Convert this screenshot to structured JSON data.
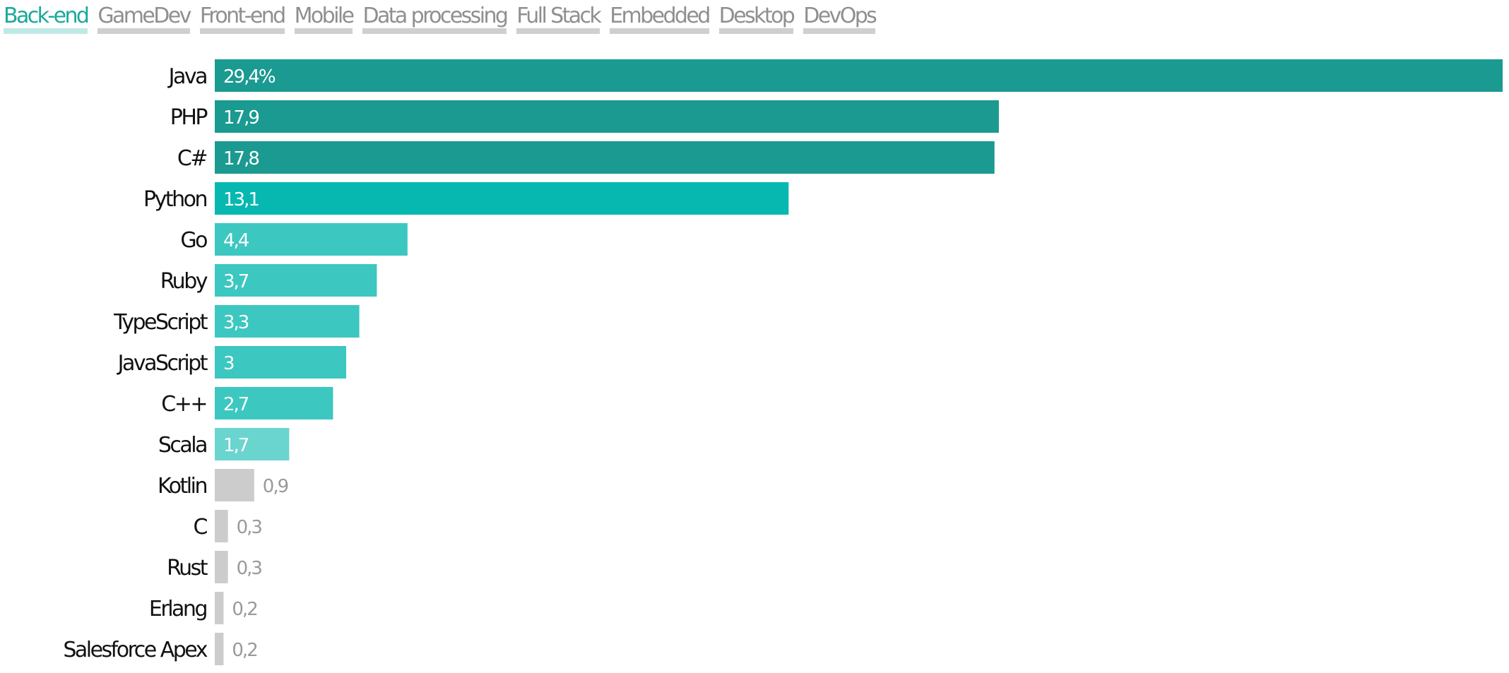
{
  "tabs": [
    {
      "label": "Back-end",
      "active": true
    },
    {
      "label": "GameDev",
      "active": false
    },
    {
      "label": "Front-end",
      "active": false
    },
    {
      "label": "Mobile",
      "active": false
    },
    {
      "label": "Data processing",
      "active": false
    },
    {
      "label": "Full Stack",
      "active": false
    },
    {
      "label": "Embedded",
      "active": false
    },
    {
      "label": "Desktop",
      "active": false
    },
    {
      "label": "DevOps",
      "active": false
    }
  ],
  "colors": {
    "dark_teal": "#1a9a90",
    "teal": "#07b8b0",
    "light_teal": "#3cc7c0",
    "pale_teal": "#6ad4cf",
    "grey": "#cccccc",
    "active_tab": "#1aa99a",
    "inactive_tab": "#8f8f8f"
  },
  "chart_data": {
    "type": "bar",
    "orientation": "horizontal",
    "unit_suffix_on_first": "%",
    "categories": [
      "Java",
      "PHP",
      "C#",
      "Python",
      "Go",
      "Ruby",
      "TypeScript",
      "JavaScript",
      "C++",
      "Scala",
      "Kotlin",
      "C",
      "Rust",
      "Erlang",
      "Salesforce Apex"
    ],
    "values": [
      29.4,
      17.9,
      17.8,
      13.1,
      4.4,
      3.7,
      3.3,
      3.0,
      2.7,
      1.7,
      0.9,
      0.3,
      0.3,
      0.2,
      0.2
    ],
    "value_labels": [
      "29,4%",
      "17,9",
      "17,8",
      "13,1",
      "4,4",
      "3,7",
      "3,3",
      "3",
      "2,7",
      "1,7",
      "0,9",
      "0,3",
      "0,3",
      "0,2",
      "0,2"
    ],
    "bar_colors": [
      "#1a9a90",
      "#1a9a90",
      "#1a9a90",
      "#07b8b0",
      "#3cc7c0",
      "#3cc7c0",
      "#3cc7c0",
      "#3cc7c0",
      "#3cc7c0",
      "#6ad4cf",
      "#cccccc",
      "#cccccc",
      "#cccccc",
      "#cccccc",
      "#cccccc"
    ],
    "label_inside": [
      true,
      true,
      true,
      true,
      true,
      true,
      true,
      true,
      true,
      true,
      false,
      false,
      false,
      false,
      false
    ],
    "xlim": [
      0,
      29.4
    ],
    "grid": false,
    "legend": "none"
  }
}
